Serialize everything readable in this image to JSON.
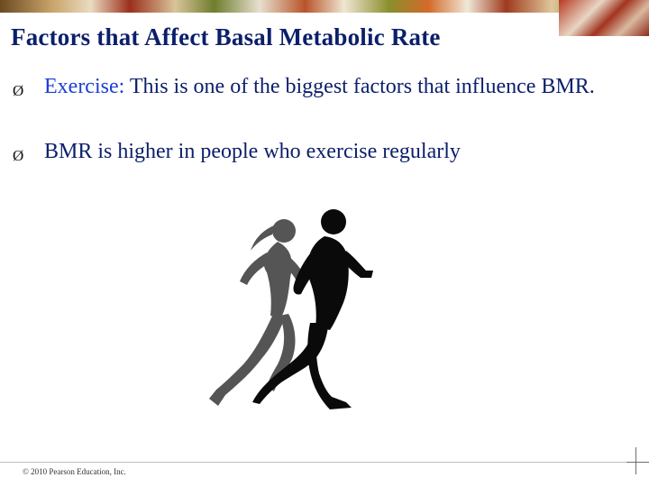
{
  "slide": {
    "title": "Factors that Affect Basal Metabolic Rate",
    "bullets": [
      {
        "keyword": "Exercise:",
        "text": " This is one of the biggest factors that influence BMR."
      },
      {
        "keyword": "",
        "text": "BMR is higher in people who exercise regularly"
      }
    ],
    "bullet_marker": "Ø",
    "footer": "© 2010 Pearson Education, Inc."
  },
  "colors": {
    "title": "#0b1f6b",
    "body_text": "#0b1f6b",
    "keyword": "#1b3fd6",
    "runner_back": "#555555",
    "runner_front": "#0a0a0a"
  },
  "image": {
    "subject": "silhouette of two runners (woman and man)"
  }
}
